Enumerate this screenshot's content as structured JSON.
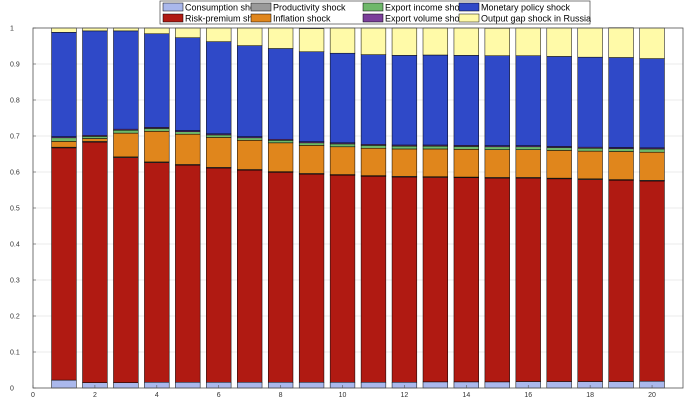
{
  "chart_data": {
    "type": "bar",
    "stacked": true,
    "grid": true,
    "legend_position": "top",
    "x": [
      1,
      2,
      3,
      4,
      5,
      6,
      7,
      8,
      9,
      10,
      11,
      12,
      13,
      14,
      15,
      16,
      17,
      18,
      19,
      20
    ],
    "xlim": [
      0,
      21
    ],
    "ylim": [
      0,
      1
    ],
    "xticks": [
      "0",
      "2",
      "4",
      "6",
      "8",
      "10",
      "12",
      "14",
      "16",
      "18",
      "20"
    ],
    "yticks": [
      "0",
      "0.1",
      "0.2",
      "0.3",
      "0.4",
      "0.5",
      "0.6",
      "0.7",
      "0.8",
      "0.9",
      "1"
    ],
    "series": [
      {
        "name": "Consumption shock",
        "color": "#aab8ec",
        "values": [
          0.022,
          0.015,
          0.015,
          0.016,
          0.016,
          0.016,
          0.016,
          0.016,
          0.016,
          0.016,
          0.016,
          0.016,
          0.017,
          0.017,
          0.017,
          0.018,
          0.018,
          0.018,
          0.018,
          0.019
        ]
      },
      {
        "name": "Risk-premium shock",
        "color": "#b01a12",
        "values": [
          0.645,
          0.668,
          0.625,
          0.61,
          0.603,
          0.595,
          0.589,
          0.583,
          0.578,
          0.575,
          0.572,
          0.57,
          0.568,
          0.567,
          0.566,
          0.565,
          0.563,
          0.561,
          0.559,
          0.556
        ]
      },
      {
        "name": "Productivity shock",
        "color": "#9a9a9a",
        "values": [
          0.002,
          0.002,
          0.002,
          0.002,
          0.002,
          0.002,
          0.002,
          0.002,
          0.002,
          0.002,
          0.002,
          0.002,
          0.002,
          0.002,
          0.002,
          0.002,
          0.002,
          0.002,
          0.002,
          0.002
        ]
      },
      {
        "name": "Inflation shock",
        "color": "#e0861c",
        "values": [
          0.016,
          0.008,
          0.066,
          0.085,
          0.084,
          0.083,
          0.081,
          0.08,
          0.078,
          0.077,
          0.076,
          0.076,
          0.077,
          0.077,
          0.077,
          0.077,
          0.077,
          0.077,
          0.078,
          0.078
        ]
      },
      {
        "name": "Export income shock",
        "color": "#6fb86a",
        "values": [
          0.01,
          0.006,
          0.008,
          0.008,
          0.007,
          0.007,
          0.007,
          0.007,
          0.007,
          0.008,
          0.008,
          0.008,
          0.008,
          0.008,
          0.008,
          0.008,
          0.008,
          0.008,
          0.008,
          0.009
        ]
      },
      {
        "name": "Export volume shock",
        "color": "#7b3f9a",
        "values": [
          0.003,
          0.003,
          0.003,
          0.003,
          0.003,
          0.003,
          0.003,
          0.003,
          0.003,
          0.003,
          0.003,
          0.003,
          0.003,
          0.003,
          0.003,
          0.003,
          0.003,
          0.003,
          0.003,
          0.003
        ]
      },
      {
        "name": "Monetary policy shock",
        "color": "#2f49c8",
        "values": [
          0.29,
          0.29,
          0.273,
          0.26,
          0.258,
          0.256,
          0.253,
          0.252,
          0.25,
          0.249,
          0.249,
          0.249,
          0.25,
          0.25,
          0.25,
          0.25,
          0.25,
          0.25,
          0.25,
          0.248
        ]
      },
      {
        "name": "Output gap shock in Russia",
        "color": "#fffaa8",
        "values": [
          0.012,
          0.008,
          0.008,
          0.016,
          0.027,
          0.038,
          0.049,
          0.057,
          0.064,
          0.07,
          0.074,
          0.076,
          0.075,
          0.076,
          0.076,
          0.077,
          0.079,
          0.081,
          0.083,
          0.085
        ]
      }
    ]
  }
}
